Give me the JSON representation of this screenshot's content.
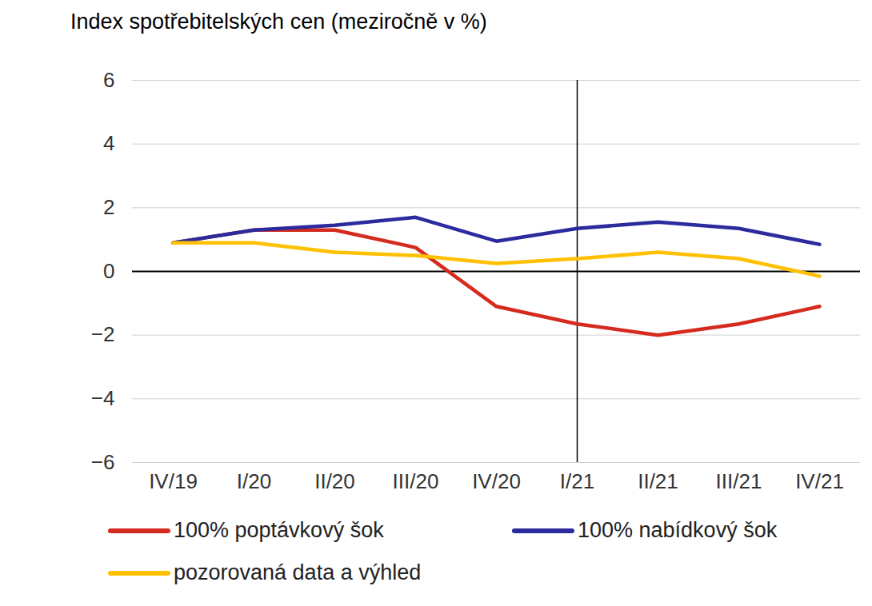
{
  "chart_data": {
    "type": "line",
    "title": "Index spotřebitelských cen (meziročně v %)",
    "categories": [
      "IV/19",
      "I/20",
      "II/20",
      "III/20",
      "IV/20",
      "I/21",
      "II/21",
      "III/21",
      "IV/21"
    ],
    "series": [
      {
        "name": "100% poptávkový šok",
        "color": "#d52b1e",
        "values": [
          0.9,
          1.3,
          1.3,
          0.75,
          -1.1,
          -1.65,
          -2.0,
          -1.65,
          -1.1
        ]
      },
      {
        "name": "100% nabídkový šok",
        "color": "#2b2b9e",
        "values": [
          0.9,
          1.3,
          1.45,
          1.7,
          0.95,
          1.35,
          1.55,
          1.35,
          0.85
        ]
      },
      {
        "name": "pozorovaná data a výhled",
        "color": "#ffc000",
        "values": [
          0.9,
          0.9,
          0.6,
          0.5,
          0.25,
          0.4,
          0.6,
          0.4,
          -0.15
        ]
      }
    ],
    "vline": "I/21",
    "ylim": [
      -6,
      6
    ],
    "yticks": [
      -6,
      -4,
      -2,
      0,
      2,
      4,
      6
    ],
    "grid": true,
    "legend": "bottom"
  }
}
